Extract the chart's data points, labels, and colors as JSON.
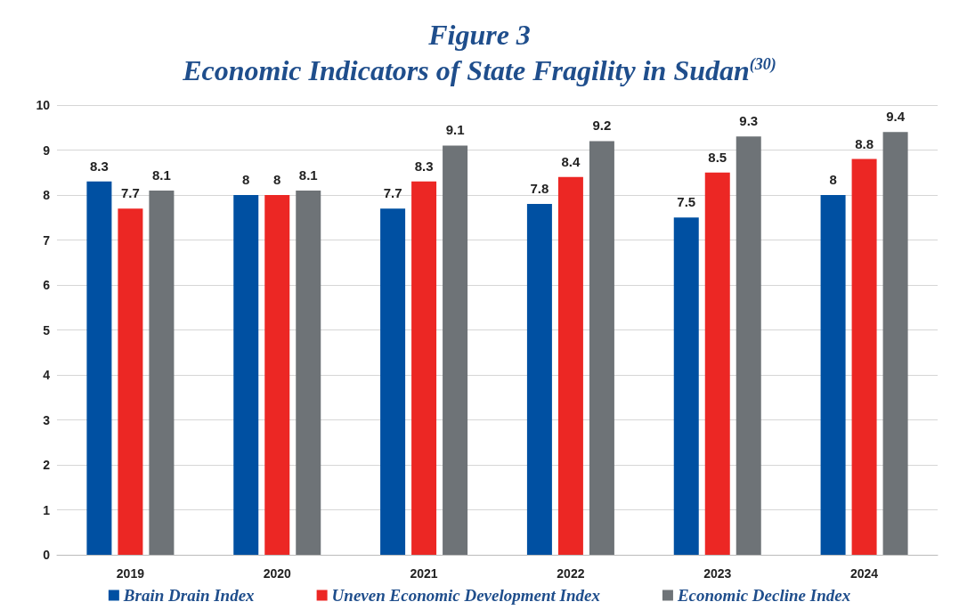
{
  "chart_data": {
    "type": "bar",
    "title": "Figure 3",
    "subtitle": "Economic Indicators of State Fragility in Sudan$^{(30)}$",
    "categories": [
      "2019",
      "2020",
      "2021",
      "2022",
      "2023",
      "2024"
    ],
    "series": [
      {
        "name": "Brain Drain Index",
        "color": "#0050a2",
        "values": [
          8.3,
          8,
          7.7,
          7.8,
          7.5,
          8
        ]
      },
      {
        "name": "Uneven Economic Development Index",
        "color": "#ec2724",
        "values": [
          7.7,
          8,
          8.3,
          8.4,
          8.5,
          8.8
        ]
      },
      {
        "name": "Economic Decline Index",
        "color": "#6e7377",
        "values": [
          8.1,
          8.1,
          9.1,
          9.2,
          9.3,
          9.4
        ]
      }
    ],
    "ylim": [
      0,
      10
    ],
    "yticks": [
      0,
      1,
      2,
      3,
      4,
      5,
      6,
      7,
      8,
      9,
      10
    ],
    "grid": "y",
    "legend": "bottom",
    "data_labels": true
  }
}
